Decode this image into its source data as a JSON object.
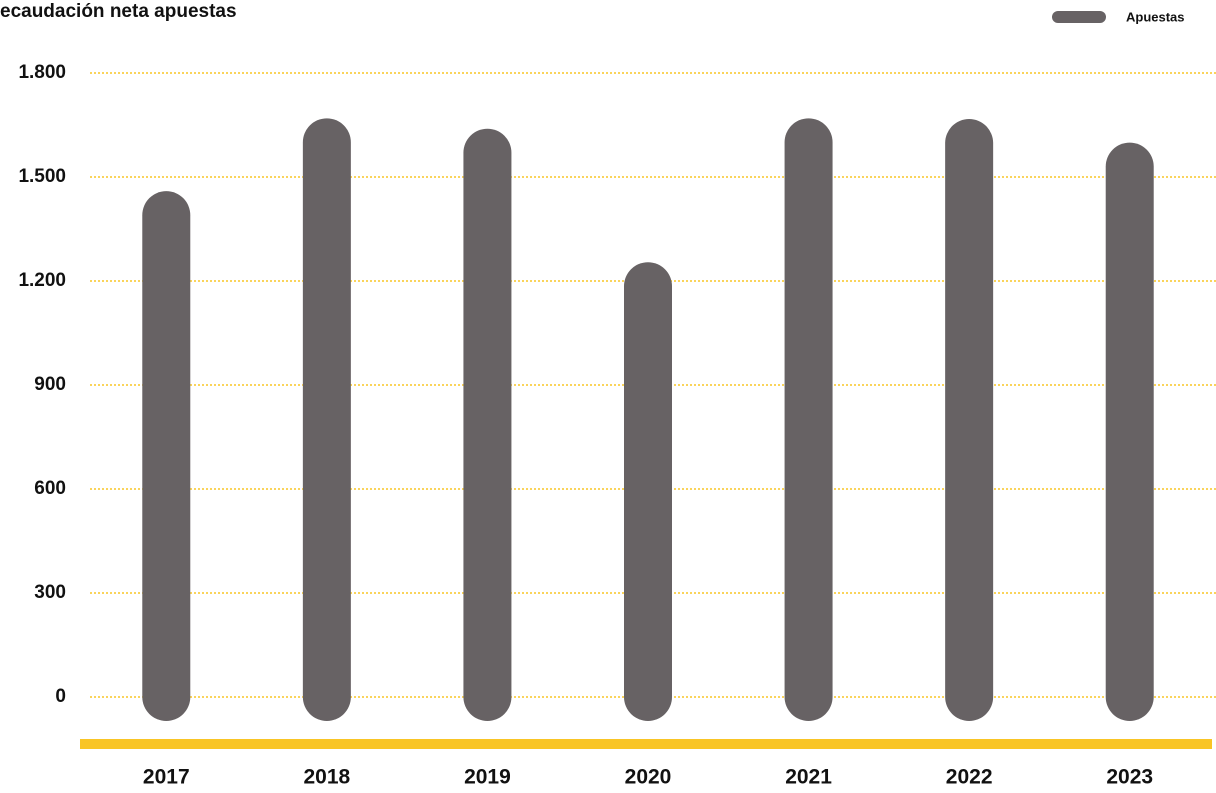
{
  "chart_data": {
    "type": "bar",
    "title": "ecaudación neta apuestas",
    "categories": [
      "2017",
      "2018",
      "2019",
      "2020",
      "2021",
      "2022",
      "2023"
    ],
    "series": [
      {
        "name": "Apuestas",
        "color": "#676264",
        "values": [
          1390,
          1600,
          1570,
          1185,
          1600,
          1598,
          1530
        ]
      }
    ],
    "ylim": [
      0,
      1800
    ],
    "yticks": [
      0,
      300,
      600,
      900,
      {
        "value": 1200,
        "label": "1.200"
      },
      {
        "value": 1500,
        "label": "1.500"
      },
      {
        "value": 1800,
        "label": "1.800"
      }
    ],
    "grid": true,
    "grid_color": "#f9c525",
    "legend": "top-right"
  }
}
